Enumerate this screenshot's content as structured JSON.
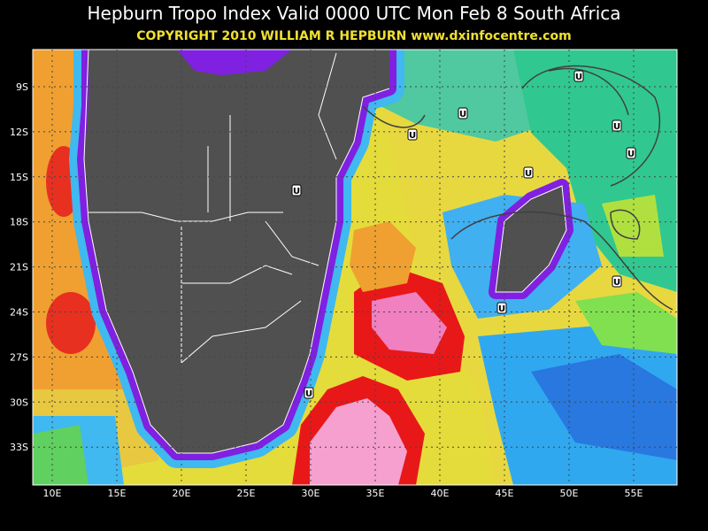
{
  "map": {
    "title": "Hepburn Tropo Index Valid 0000 UTC Mon Feb 8 South Africa",
    "subtitle": "COPYRIGHT 2010  WILLIAM R HEPBURN  www.dxinfocentre.com",
    "lat_ticks": [
      "9S",
      "12S",
      "15S",
      "18S",
      "21S",
      "24S",
      "27S",
      "30S",
      "33S"
    ],
    "lon_ticks": [
      "10E",
      "15E",
      "20E",
      "25E",
      "30E",
      "35E",
      "40E",
      "45E",
      "50E",
      "55E"
    ],
    "markers": [
      "U",
      "U",
      "U",
      "U",
      "U",
      "U",
      "U",
      "U",
      "U",
      "U"
    ]
  }
}
